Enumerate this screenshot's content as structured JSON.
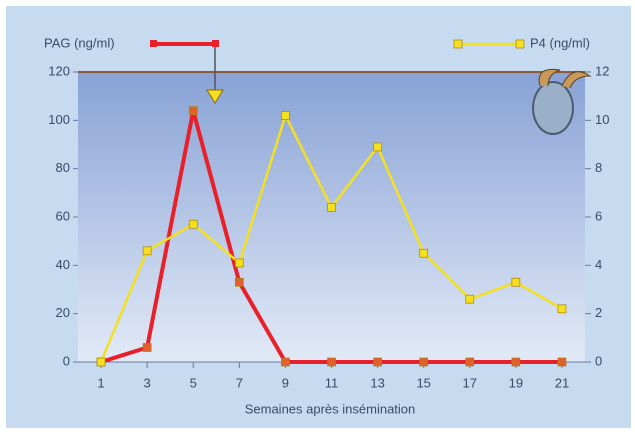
{
  "chart_data": {
    "type": "line",
    "x_label": "Semaines après insémination",
    "x": [
      1,
      3,
      5,
      7,
      9,
      11,
      13,
      15,
      17,
      19,
      21
    ],
    "xlim": [
      0,
      22
    ],
    "xticks": [
      1,
      3,
      5,
      7,
      9,
      11,
      13,
      15,
      17,
      19,
      21
    ],
    "ylim": [
      0,
      120
    ],
    "yticks": [
      0,
      20,
      40,
      60,
      80,
      100,
      120
    ],
    "y2lim": [
      0,
      12
    ],
    "y2ticks": [
      0,
      2,
      4,
      6,
      8,
      10,
      12
    ],
    "grid": false,
    "series": [
      {
        "name": "PAG (ng/ml)",
        "color": "#e8202a",
        "values": [
          0,
          6,
          104,
          33,
          0,
          0,
          0,
          0,
          0,
          0,
          0
        ]
      },
      {
        "name": "P4 (ng/ml)",
        "color": "#f5e020",
        "axis": "y2",
        "values": [
          0,
          4.6,
          5.7,
          4.1,
          10.2,
          6.4,
          8.9,
          4.5,
          2.6,
          3.3,
          2.2
        ]
      }
    ]
  }
}
